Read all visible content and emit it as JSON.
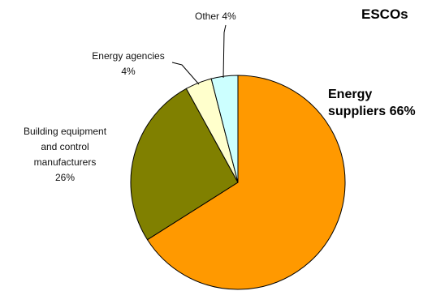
{
  "chart_data": {
    "type": "pie",
    "title": "ESCOs",
    "slices": [
      {
        "label": "Energy suppliers",
        "value": 66,
        "label_lines": [
          "Energy",
          "suppliers 66%"
        ],
        "color": "#FF9900"
      },
      {
        "label": "Building equipment and control manufacturers",
        "value": 26,
        "label_lines": [
          "Building equipment",
          "and control",
          "manufacturers",
          "26%"
        ],
        "color": "#808000"
      },
      {
        "label": "Energy agencies",
        "value": 4,
        "label_lines": [
          "Energy agencies",
          "4%"
        ],
        "color": "#FFFFCC"
      },
      {
        "label": "Other",
        "value": 4,
        "label_lines": [
          "Other 4%"
        ],
        "color": "#CCFFFF"
      }
    ]
  }
}
